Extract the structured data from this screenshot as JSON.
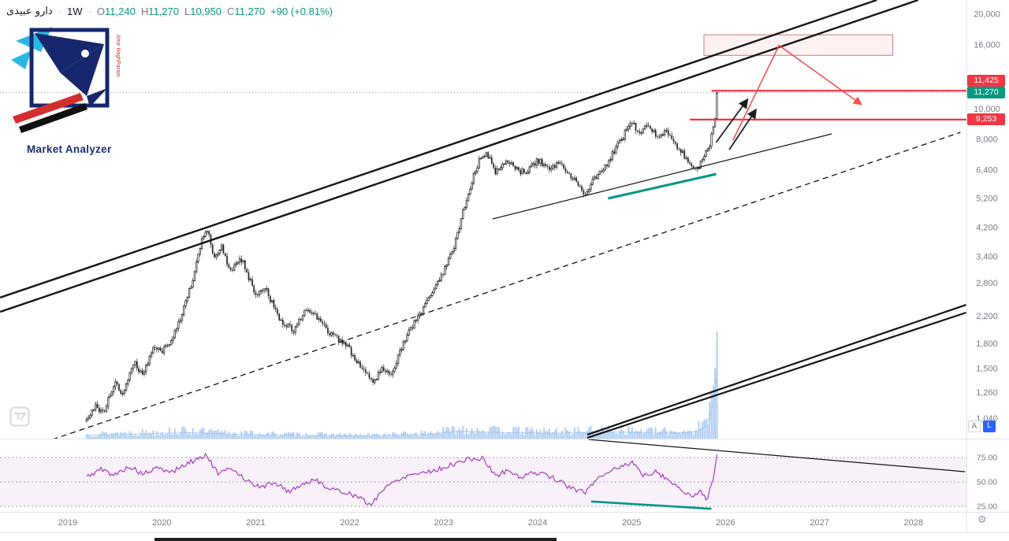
{
  "header": {
    "symbol": "دارو عبیدی",
    "sep": "·",
    "timeframe": "1W",
    "ohlc": {
      "o_label": "O",
      "o_value": "11,240",
      "h_label": "H",
      "h_value": "11,270",
      "l_label": "L",
      "l_value": "10,950",
      "c_label": "C",
      "c_value": "11,270",
      "change": "+90 (+0.81%)"
    },
    "up_color": "#089981"
  },
  "logo": {
    "title": "Market Analyzer",
    "side_text": "Amir HaghParast"
  },
  "icons": {
    "settings": "⚙"
  },
  "price_scale": {
    "tick_labels": [
      "20,000",
      "16,000",
      "12,000",
      "10,000",
      "8,000",
      "6,400",
      "5,200",
      "4,200",
      "3,400",
      "2,800",
      "2,200",
      "1,800",
      "1,500",
      "1,260",
      "1,040"
    ],
    "badges": [
      {
        "label": "11,425",
        "price": 11425,
        "color": "#f23645"
      },
      {
        "label": "11,270",
        "price": 11270,
        "color": "#089981"
      },
      {
        "label": "9,253",
        "price": 9253,
        "color": "#f23645"
      }
    ],
    "auto_button": "A",
    "log_button": "L"
  },
  "time_scale": {
    "years": [
      "2019",
      "2020",
      "2021",
      "2022",
      "2023",
      "2024",
      "2025",
      "2026",
      "2027",
      "2028"
    ]
  },
  "rsi_scale": {
    "tick_labels": [
      "75.00",
      "50.00",
      "25.00"
    ]
  },
  "theme": {
    "background": "#ffffff",
    "candle_up_fill": "#ffffff",
    "candle_down_fill": "#202327",
    "candle_border": "#202327",
    "volume_color": "#aecdf2",
    "axis_text": "#787b86",
    "border": "#e0e3eb",
    "accent_red": "#f23645",
    "accent_teal": "#009688",
    "rsi_purple": "#ab47bc",
    "rsi_band": "rgba(171,71,188,0.08)",
    "rsi_dashed": "#9b9eab",
    "log_button_blue": "#2962ff",
    "last_price_dotted": "#9598a1"
  },
  "chart_data": {
    "type": "candlestick",
    "symbol": "دارو عبیدی",
    "timeframe": "1W",
    "scale": "log",
    "price_ticks": [
      20000,
      16000,
      12000,
      10000,
      8000,
      6400,
      5200,
      4200,
      3400,
      2800,
      2200,
      1800,
      1500,
      1260,
      1040
    ],
    "years": [
      2019,
      2020,
      2021,
      2022,
      2023,
      2024,
      2025,
      2026,
      2027,
      2028
    ],
    "series_start": 2019.2,
    "series_end": 2025.91,
    "last_bar": {
      "open": 11240,
      "high": 11270,
      "low": 10950,
      "close": 11270,
      "change": 90,
      "change_pct": 0.81
    },
    "price_anchors": [
      [
        2019.2,
        1020
      ],
      [
        2019.3,
        1140
      ],
      [
        2019.38,
        1080
      ],
      [
        2019.5,
        1360
      ],
      [
        2019.58,
        1240
      ],
      [
        2019.7,
        1580
      ],
      [
        2019.8,
        1430
      ],
      [
        2019.92,
        1780
      ],
      [
        2020.0,
        1690
      ],
      [
        2020.1,
        1860
      ],
      [
        2020.22,
        2250
      ],
      [
        2020.34,
        2950
      ],
      [
        2020.44,
        3950
      ],
      [
        2020.49,
        4150
      ],
      [
        2020.56,
        3320
      ],
      [
        2020.63,
        3680
      ],
      [
        2020.73,
        3060
      ],
      [
        2020.85,
        3340
      ],
      [
        2021.0,
        2560
      ],
      [
        2021.1,
        2720
      ],
      [
        2021.25,
        2140
      ],
      [
        2021.4,
        1980
      ],
      [
        2021.55,
        2340
      ],
      [
        2021.68,
        2120
      ],
      [
        2021.82,
        1900
      ],
      [
        2021.95,
        1800
      ],
      [
        2022.1,
        1560
      ],
      [
        2022.25,
        1340
      ],
      [
        2022.33,
        1510
      ],
      [
        2022.45,
        1450
      ],
      [
        2022.6,
        1900
      ],
      [
        2022.75,
        2240
      ],
      [
        2022.9,
        2700
      ],
      [
        2023.0,
        3020
      ],
      [
        2023.12,
        3720
      ],
      [
        2023.25,
        5300
      ],
      [
        2023.38,
        6900
      ],
      [
        2023.46,
        7200
      ],
      [
        2023.56,
        6280
      ],
      [
        2023.66,
        6900
      ],
      [
        2023.76,
        6480
      ],
      [
        2023.88,
        6220
      ],
      [
        2024.0,
        6900
      ],
      [
        2024.12,
        6480
      ],
      [
        2024.25,
        6700
      ],
      [
        2024.4,
        5900
      ],
      [
        2024.5,
        5420
      ],
      [
        2024.62,
        6100
      ],
      [
        2024.75,
        6800
      ],
      [
        2024.88,
        7900
      ],
      [
        2025.0,
        9100
      ],
      [
        2025.08,
        8380
      ],
      [
        2025.17,
        8880
      ],
      [
        2025.28,
        8120
      ],
      [
        2025.38,
        8480
      ],
      [
        2025.5,
        7480
      ],
      [
        2025.6,
        6880
      ],
      [
        2025.68,
        6420
      ],
      [
        2025.76,
        6900
      ],
      [
        2025.83,
        7650
      ],
      [
        2025.87,
        8700
      ],
      [
        2025.895,
        9800
      ],
      [
        2025.91,
        11270
      ]
    ],
    "volume_anchors": [
      [
        2019.2,
        0.05
      ],
      [
        2020.3,
        0.09
      ],
      [
        2020.6,
        0.07
      ],
      [
        2021.3,
        0.05
      ],
      [
        2022.2,
        0.04
      ],
      [
        2022.8,
        0.06
      ],
      [
        2023.2,
        0.11
      ],
      [
        2023.6,
        0.09
      ],
      [
        2024.2,
        0.08
      ],
      [
        2024.8,
        0.1
      ],
      [
        2025.3,
        0.08
      ],
      [
        2025.65,
        0.09
      ],
      [
        2025.78,
        0.16
      ],
      [
        2025.84,
        0.35
      ],
      [
        2025.88,
        0.6
      ],
      [
        2025.91,
        1.0
      ]
    ],
    "horizontal_levels": [
      {
        "price": 11425,
        "label": "11,425",
        "color": "#f23645",
        "start_year": 2025.85
      },
      {
        "price": 9253,
        "label": "9,253",
        "color": "#f23645",
        "start_year": 2025.62
      }
    ],
    "supply_zone": {
      "year_start": 2025.77,
      "year_end": 2027.78,
      "price_low": 14800,
      "price_high": 17200
    },
    "trend_lines": [
      {
        "name": "channel-upper-outer",
        "style": "solid",
        "width": 2.4,
        "color": "#141414",
        "points": [
          [
            2018.28,
            2520
          ],
          [
            2027.61,
            22180
          ]
        ]
      },
      {
        "name": "channel-upper-inner",
        "style": "solid",
        "width": 2.4,
        "color": "#141414",
        "points": [
          [
            2018.28,
            2270
          ],
          [
            2028.05,
            22180
          ]
        ]
      },
      {
        "name": "channel-lower-outer",
        "style": "solid",
        "width": 2.2,
        "color": "#141414",
        "points": [
          [
            2024.53,
            925
          ],
          [
            2028.56,
            2390
          ]
        ]
      },
      {
        "name": "channel-lower-inner",
        "style": "solid",
        "width": 2.2,
        "color": "#141414",
        "points": [
          [
            2024.53,
            904
          ],
          [
            2028.56,
            2257
          ]
        ]
      },
      {
        "name": "dashed-midline",
        "style": "dashed",
        "width": 1.3,
        "color": "#141414",
        "points": [
          [
            2018.74,
            873
          ],
          [
            2028.5,
            8434
          ]
        ]
      },
      {
        "name": "minor-trendline",
        "style": "solid",
        "width": 1.2,
        "color": "#141414",
        "points": [
          [
            2023.52,
            4477
          ],
          [
            2027.13,
            8337
          ]
        ]
      },
      {
        "name": "teal-support-line",
        "style": "solid",
        "width": 3,
        "color": "#009688",
        "points": [
          [
            2024.75,
            5200
          ],
          [
            2025.9,
            6216
          ]
        ]
      }
    ],
    "arrows": [
      {
        "name": "black-arrow-1",
        "color": "#1b1f24",
        "points": [
          [
            2025.9,
            7836
          ],
          [
            2026.23,
            10680
          ]
        ]
      },
      {
        "name": "black-arrow-2",
        "color": "#1b1f24",
        "points": [
          [
            2026.04,
            7430
          ],
          [
            2026.32,
            9908
          ]
        ]
      }
    ],
    "projection_path": {
      "color": "#ef5350",
      "points": [
        [
          2026.08,
          7962
        ],
        [
          2026.57,
          15912
        ],
        [
          2027.44,
          10370
        ]
      ]
    },
    "rsi": {
      "bands": [
        75,
        50,
        25
      ],
      "line_color": "#ab47bc",
      "last_value": 77,
      "anchors": [
        [
          2019.2,
          55
        ],
        [
          2019.35,
          63
        ],
        [
          2019.5,
          57
        ],
        [
          2019.65,
          66
        ],
        [
          2019.8,
          58
        ],
        [
          2019.95,
          64
        ],
        [
          2020.1,
          60
        ],
        [
          2020.3,
          70
        ],
        [
          2020.47,
          78
        ],
        [
          2020.6,
          58
        ],
        [
          2020.75,
          64
        ],
        [
          2020.9,
          52
        ],
        [
          2021.05,
          44
        ],
        [
          2021.2,
          50
        ],
        [
          2021.35,
          40
        ],
        [
          2021.5,
          48
        ],
        [
          2021.65,
          52
        ],
        [
          2021.8,
          42
        ],
        [
          2021.95,
          40
        ],
        [
          2022.1,
          34
        ],
        [
          2022.22,
          26
        ],
        [
          2022.35,
          42
        ],
        [
          2022.5,
          52
        ],
        [
          2022.65,
          58
        ],
        [
          2022.8,
          60
        ],
        [
          2022.95,
          63
        ],
        [
          2023.1,
          68
        ],
        [
          2023.25,
          73
        ],
        [
          2023.42,
          74
        ],
        [
          2023.55,
          56
        ],
        [
          2023.68,
          62
        ],
        [
          2023.8,
          55
        ],
        [
          2023.92,
          58
        ],
        [
          2024.05,
          60
        ],
        [
          2024.2,
          52
        ],
        [
          2024.35,
          44
        ],
        [
          2024.5,
          39
        ],
        [
          2024.65,
          55
        ],
        [
          2024.8,
          63
        ],
        [
          2024.92,
          67
        ],
        [
          2025.02,
          70
        ],
        [
          2025.12,
          56
        ],
        [
          2025.25,
          61
        ],
        [
          2025.35,
          55
        ],
        [
          2025.48,
          46
        ],
        [
          2025.58,
          38
        ],
        [
          2025.66,
          34
        ],
        [
          2025.73,
          42
        ],
        [
          2025.8,
          33
        ],
        [
          2025.86,
          48
        ],
        [
          2025.91,
          77
        ]
      ],
      "trend_line": {
        "points": [
          [
            2024.54,
            93.5
          ],
          [
            2028.55,
            60.5
          ]
        ],
        "color": "#141414"
      },
      "teal_line": {
        "points": [
          [
            2024.57,
            30
          ],
          [
            2025.85,
            22.5
          ]
        ],
        "color": "#009688"
      }
    }
  }
}
